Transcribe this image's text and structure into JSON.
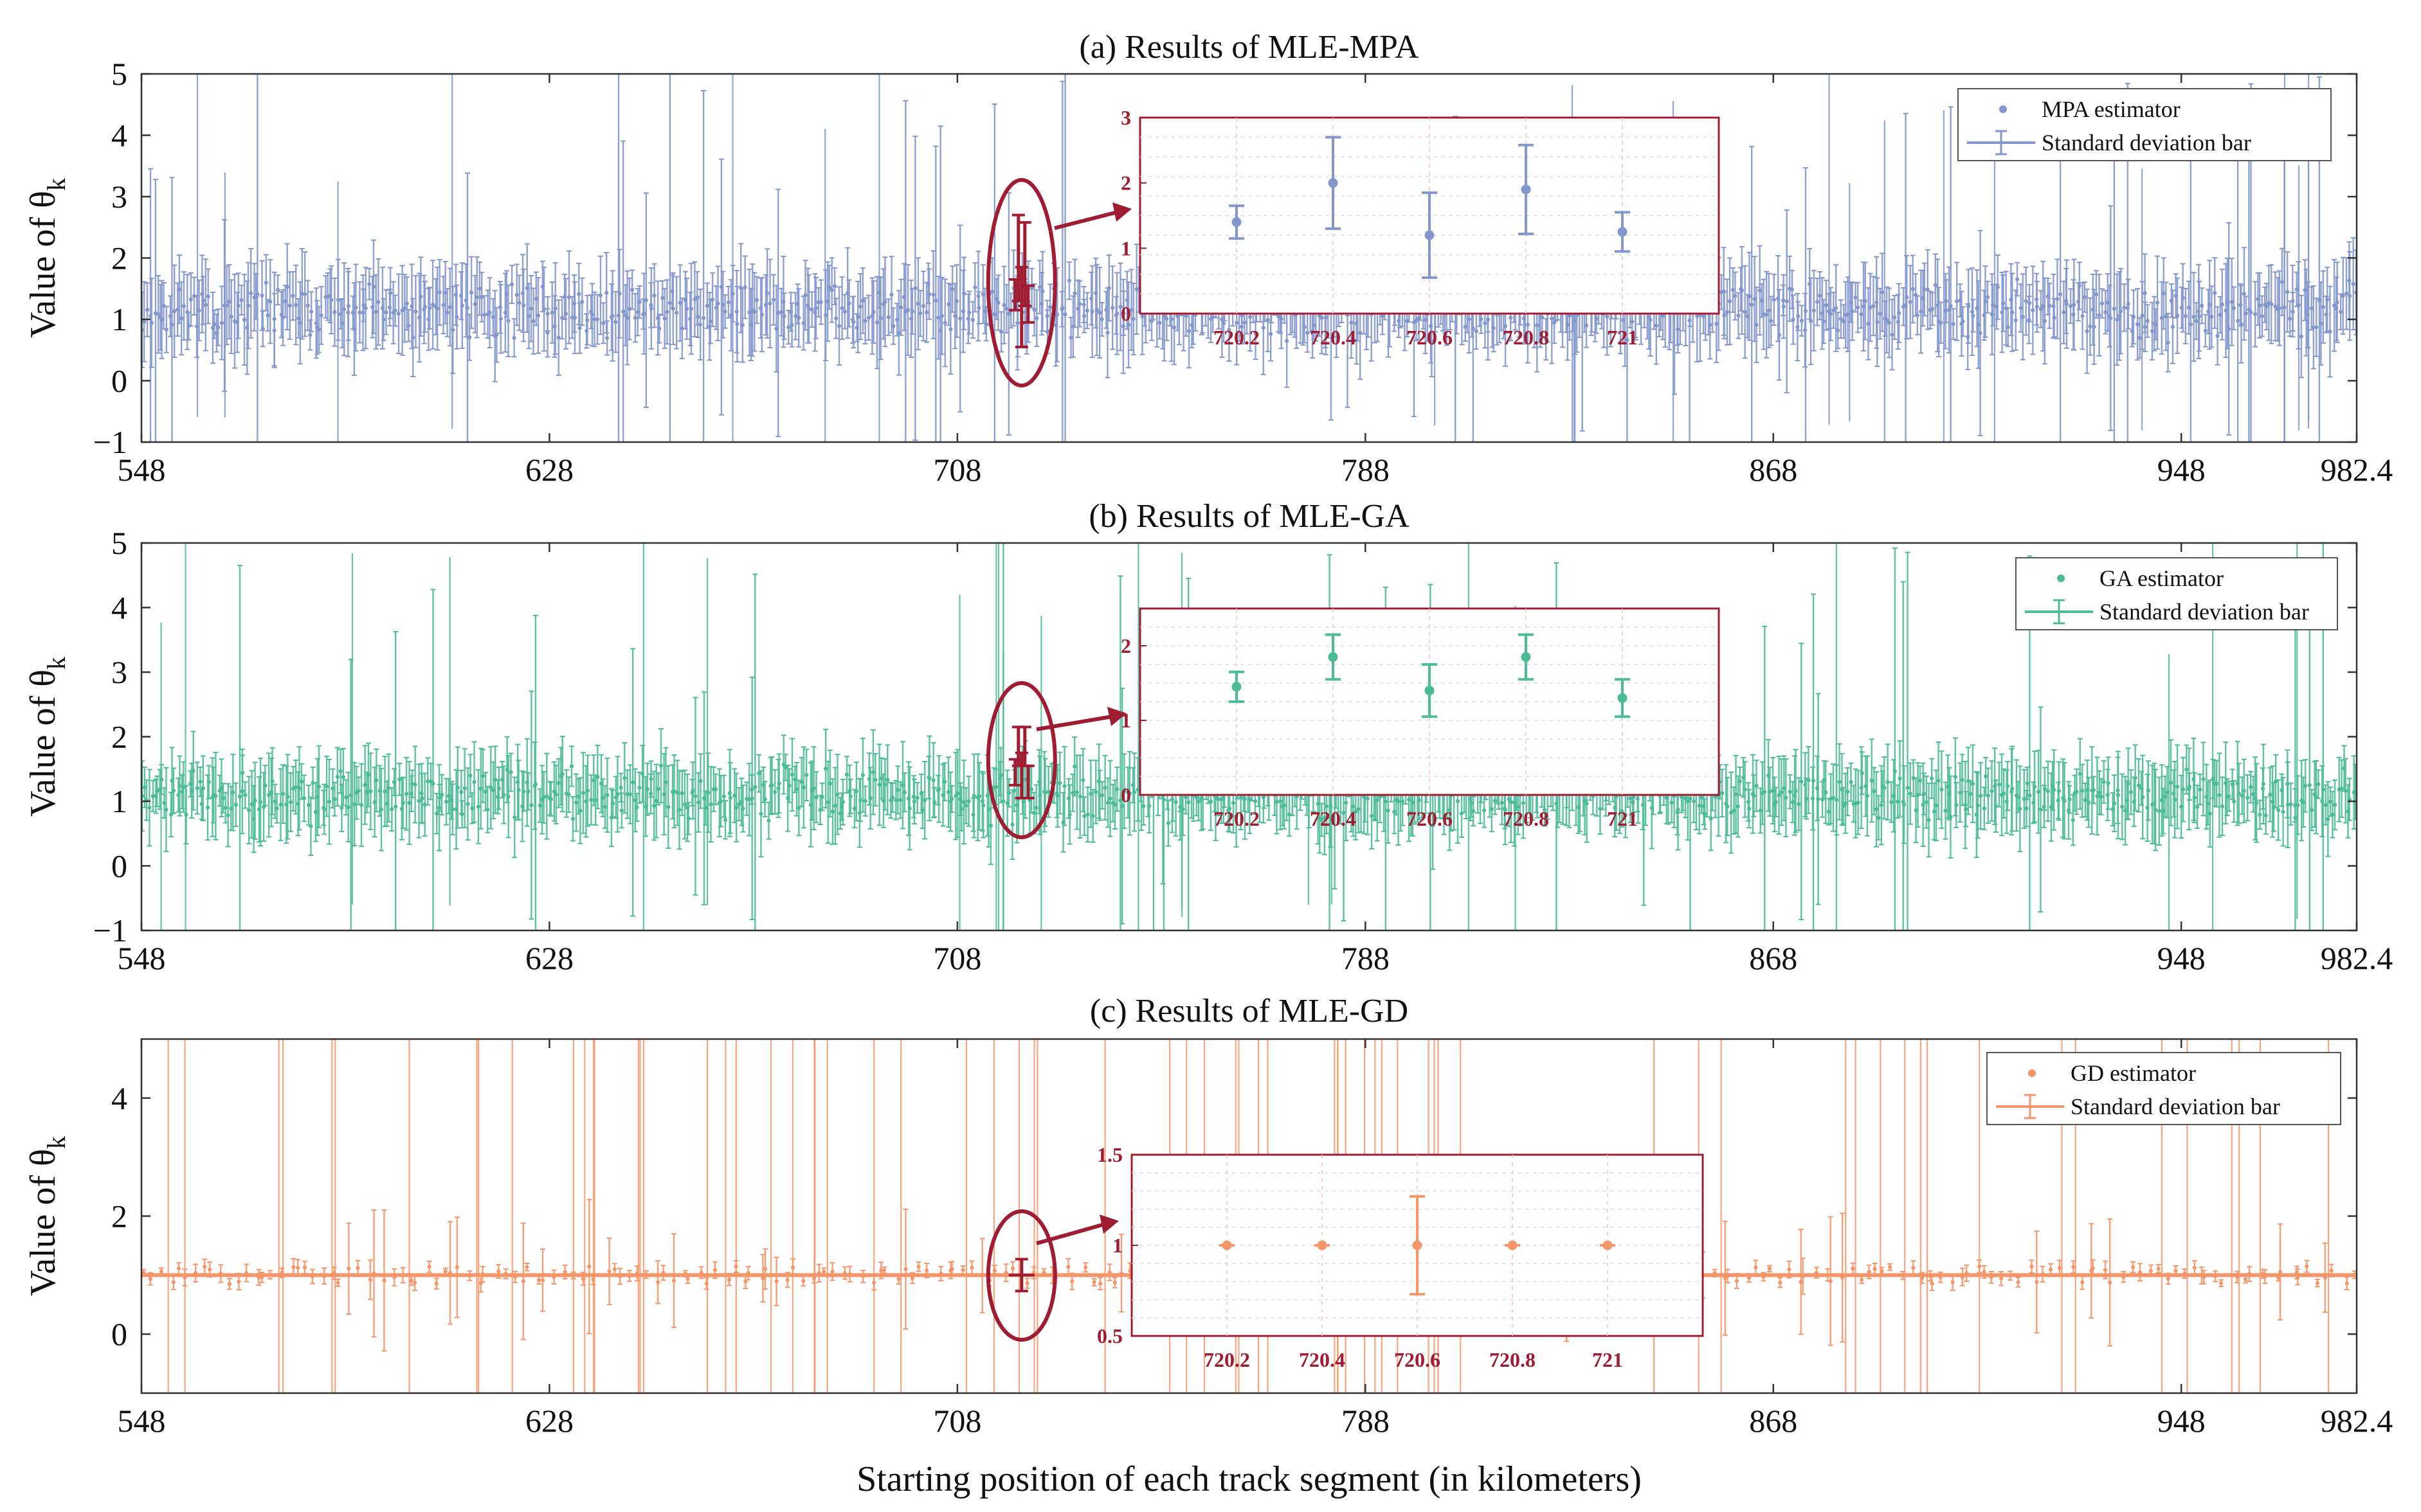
{
  "chart_data": [
    {
      "type": "scatter",
      "title": "(a) Results of MLE-MPA",
      "ylabel": "Value of θ",
      "ylabel_sub": "k",
      "xlabel": "",
      "xlim": [
        548,
        982.4
      ],
      "ylim": [
        -1,
        5
      ],
      "xticks": [
        "548",
        "628",
        "708",
        "788",
        "868",
        "948",
        "982.4"
      ],
      "xtick_values": [
        548,
        628,
        708,
        788,
        868,
        948,
        982.4
      ],
      "yticks": [
        "−1",
        "0",
        "1",
        "2",
        "3",
        "4",
        "5"
      ],
      "ytick_values": [
        -1,
        0,
        1,
        2,
        3,
        4,
        5
      ],
      "color": "#8497cc",
      "series": [
        {
          "name": "MPA estimator",
          "marker": "point"
        },
        {
          "name": "Standard  deviation bar",
          "marker": "errorbar"
        }
      ],
      "noise": {
        "center": 1.15,
        "typical_sd": 0.45,
        "n": 900,
        "seed": 11
      },
      "highlight_x": 720.6,
      "inset": {
        "x": [
          720.2,
          720.4,
          720.6,
          720.8,
          721
        ],
        "xtick_labels": [
          "720.2",
          "720.4",
          "720.6",
          "720.8",
          "721"
        ],
        "y": [
          1.4,
          2.0,
          1.2,
          1.9,
          1.25
        ],
        "yerr": [
          0.25,
          0.7,
          0.65,
          0.68,
          0.3
        ],
        "ylim": [
          0,
          3
        ],
        "yticks": [
          "0",
          "1",
          "2",
          "3"
        ],
        "ytick_values": [
          0,
          1,
          2,
          3
        ]
      }
    },
    {
      "type": "scatter",
      "title": "(b) Results of MLE-GA",
      "ylabel": "Value of θ",
      "ylabel_sub": "k",
      "xlabel": "",
      "xlim": [
        548,
        982.4
      ],
      "ylim": [
        -1,
        5
      ],
      "xticks": [
        "548",
        "628",
        "708",
        "788",
        "868",
        "948",
        "982.4"
      ],
      "xtick_values": [
        548,
        628,
        708,
        788,
        868,
        948,
        982.4
      ],
      "yticks": [
        "−1",
        "0",
        "1",
        "2",
        "3",
        "4",
        "5"
      ],
      "ytick_values": [
        -1,
        0,
        1,
        2,
        3,
        4,
        5
      ],
      "color": "#4cbb97",
      "series": [
        {
          "name": "GA estimator",
          "marker": "point"
        },
        {
          "name": "Standard  deviation bar",
          "marker": "errorbar"
        }
      ],
      "noise": {
        "center": 1.1,
        "typical_sd": 0.4,
        "n": 900,
        "seed": 23
      },
      "highlight_x": 720.6,
      "inset": {
        "x": [
          720.2,
          720.4,
          720.6,
          720.8,
          721
        ],
        "xtick_labels": [
          "720.2",
          "720.4",
          "720.6",
          "720.8",
          "721"
        ],
        "y": [
          1.45,
          1.85,
          1.4,
          1.85,
          1.3
        ],
        "yerr": [
          0.2,
          0.3,
          0.35,
          0.3,
          0.25
        ],
        "ylim": [
          0,
          2.5
        ],
        "yticks": [
          "0",
          "1",
          "2"
        ],
        "ytick_values": [
          0,
          1,
          2
        ]
      }
    },
    {
      "type": "scatter",
      "title": "(c) Results of MLE-GD",
      "ylabel": "Value of θ",
      "ylabel_sub": "k",
      "xlabel": "Starting position of each track segment (in kilometers)",
      "xlim": [
        548,
        982.4
      ],
      "ylim": [
        -1,
        5
      ],
      "xticks": [
        "548",
        "628",
        "708",
        "788",
        "868",
        "948",
        "982.4"
      ],
      "xtick_values": [
        548,
        628,
        708,
        788,
        868,
        948,
        982.4
      ],
      "yticks": [
        "0",
        "2",
        "4"
      ],
      "ytick_values": [
        0,
        2,
        4
      ],
      "color": "#f5966a",
      "series": [
        {
          "name": "GD estimator",
          "marker": "point"
        },
        {
          "name": "Standard  deviation bar",
          "marker": "errorbar"
        }
      ],
      "noise": {
        "center": 1.0,
        "typical_sd": 0.05,
        "n": 260,
        "seed": 37
      },
      "highlight_x": 720.6,
      "inset": {
        "x": [
          720.2,
          720.4,
          720.6,
          720.8,
          721
        ],
        "xtick_labels": [
          "720.2",
          "720.4",
          "720.6",
          "720.8",
          "721"
        ],
        "y": [
          1.0,
          1.0,
          1.0,
          1.0,
          1.0
        ],
        "yerr": [
          0.0,
          0.0,
          0.27,
          0.0,
          0.0
        ],
        "ylim": [
          0.5,
          1.5
        ],
        "yticks": [
          "0.5",
          "1",
          "1.5"
        ],
        "ytick_values": [
          0.5,
          1,
          1.5
        ]
      }
    }
  ]
}
